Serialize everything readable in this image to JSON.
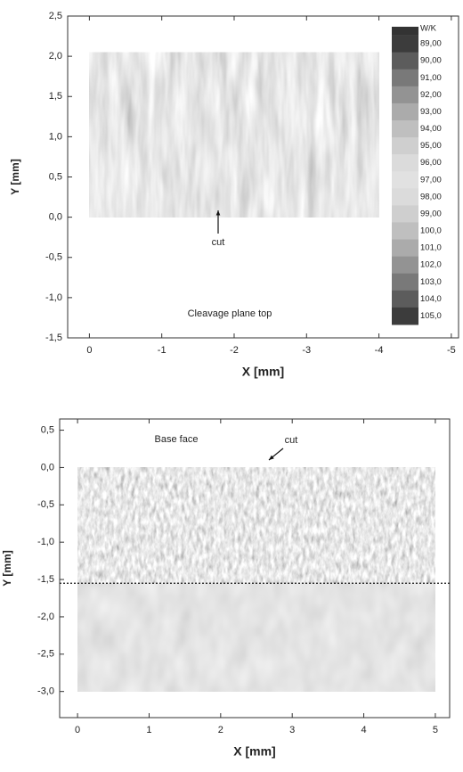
{
  "chart_data": [
    {
      "type": "image",
      "x_label": "X [mm]",
      "y_label": "Y [mm]",
      "xlim": [
        0.3,
        -5.1
      ],
      "ylim": [
        -1.5,
        2.5
      ],
      "xticks": [
        0,
        -1,
        -2,
        -3,
        -4,
        -5
      ],
      "yticks": [
        {
          "value": 2.5,
          "label": "2,5"
        },
        {
          "value": 2.0,
          "label": "2,0"
        },
        {
          "value": 1.5,
          "label": "1,5"
        },
        {
          "value": 1.0,
          "label": "1,0"
        },
        {
          "value": 0.5,
          "label": "0,5"
        },
        {
          "value": 0.0,
          "label": "0,0"
        },
        {
          "value": -0.5,
          "label": "-0,5"
        },
        {
          "value": -1.0,
          "label": "-1,0"
        },
        {
          "value": -1.5,
          "label": "-1,5"
        }
      ],
      "image_extent": {
        "x": [
          0,
          -4
        ],
        "y": [
          0,
          2.05
        ]
      },
      "annotations": [
        "cut",
        "Cleavage plane top"
      ],
      "colorbar": {
        "title": "W/K",
        "ticks": [
          {
            "value": 89,
            "label": "89,00"
          },
          {
            "value": 90,
            "label": "90,00"
          },
          {
            "value": 91,
            "label": "91,00"
          },
          {
            "value": 92,
            "label": "92,00"
          },
          {
            "value": 93,
            "label": "93,00"
          },
          {
            "value": 94,
            "label": "94,00"
          },
          {
            "value": 95,
            "label": "95,00"
          },
          {
            "value": 96,
            "label": "96,00"
          },
          {
            "value": 97,
            "label": "97,00"
          },
          {
            "value": 98,
            "label": "98,00"
          },
          {
            "value": 99,
            "label": "99,00"
          },
          {
            "value": 100,
            "label": "100,0"
          },
          {
            "value": 101,
            "label": "101,0"
          },
          {
            "value": 102,
            "label": "102,0"
          },
          {
            "value": 103,
            "label": "103,0"
          },
          {
            "value": 104,
            "label": "104,0"
          },
          {
            "value": 105,
            "label": "105,0"
          }
        ]
      }
    },
    {
      "type": "image",
      "x_label": "X [mm]",
      "y_label": "Y [mm]",
      "xlim": [
        -0.25,
        5.2
      ],
      "ylim": [
        -3.35,
        0.65
      ],
      "xticks": [
        0,
        1,
        2,
        3,
        4,
        5
      ],
      "yticks": [
        {
          "value": 0.5,
          "label": "0,5"
        },
        {
          "value": 0.0,
          "label": "0,0"
        },
        {
          "value": -0.5,
          "label": "-0,5"
        },
        {
          "value": -1.0,
          "label": "-1,0"
        },
        {
          "value": -1.5,
          "label": "-1,5"
        },
        {
          "value": -2.0,
          "label": "-2,0"
        },
        {
          "value": -2.5,
          "label": "-2,5"
        },
        {
          "value": -3.0,
          "label": "-3,0"
        }
      ],
      "image_extent": {
        "x": [
          0,
          5
        ],
        "y": [
          0,
          -3
        ]
      },
      "hline": -1.55,
      "annotations": [
        "Base face",
        "cut"
      ]
    }
  ]
}
